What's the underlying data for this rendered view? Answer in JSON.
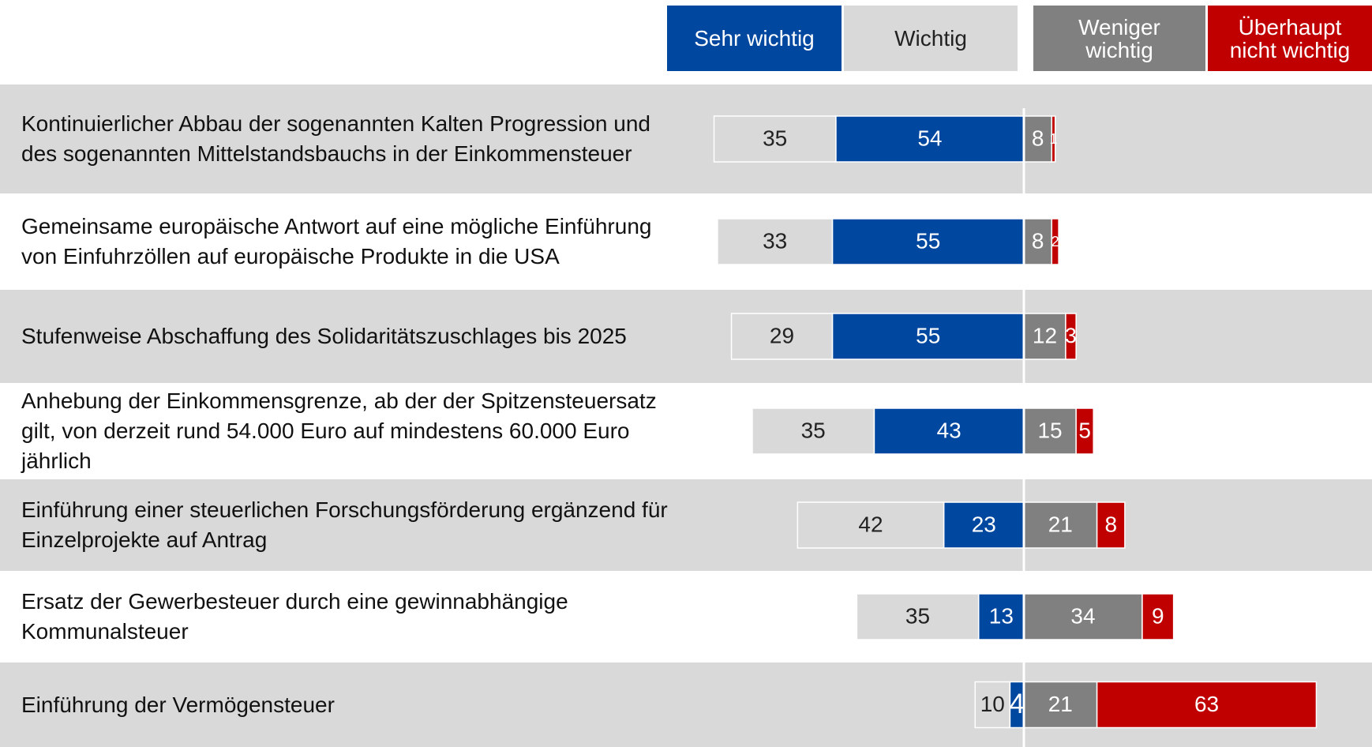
{
  "chart_data": {
    "type": "bar",
    "orientation": "horizontal",
    "stacked": true,
    "diverging": true,
    "categories": [
      "Kontinuierlicher Abbau der sogenannten Kalten Progression und des sogenannten Mittelstandsbauchs in der Einkommensteuer",
      "Gemeinsame europäische Antwort auf eine mögliche Einführung von Einfuhrzöllen auf europäische Produkte in die USA",
      "Stufenweise Abschaffung des Solidaritätszuschlages bis 2025",
      "Anhebung der Einkommensgrenze, ab der der Spitzensteuersatz gilt, von derzeit rund 54.000 Euro auf mindestens 60.000 Euro jährlich",
      "Einführung einer steuerlichen Forschungsförderung ergänzend für Einzelprojekte auf Antrag",
      "Ersatz der Gewerbesteuer durch eine gewinnabhängige Kommunalsteuer",
      "Einführung der Vermögensteuer"
    ],
    "series": [
      {
        "name": "Sehr wichtig",
        "color": "#0047a0",
        "label_color": "#ffffff",
        "side": "left",
        "values": [
          54,
          55,
          55,
          43,
          23,
          13,
          4
        ]
      },
      {
        "name": "Wichtig",
        "color": "#d9d9d9",
        "label_color": "#222222",
        "side": "left",
        "values": [
          35,
          33,
          29,
          35,
          42,
          35,
          10
        ]
      },
      {
        "name": "Weniger wichtig",
        "color": "#808080",
        "label_color": "#ffffff",
        "side": "right",
        "values": [
          8,
          8,
          12,
          15,
          21,
          34,
          21
        ]
      },
      {
        "name": "Überhaupt nicht wichtig",
        "color": "#c00000",
        "label_color": "#ffffff",
        "side": "right",
        "values": [
          1,
          2,
          3,
          5,
          8,
          9,
          63
        ]
      }
    ]
  }
}
